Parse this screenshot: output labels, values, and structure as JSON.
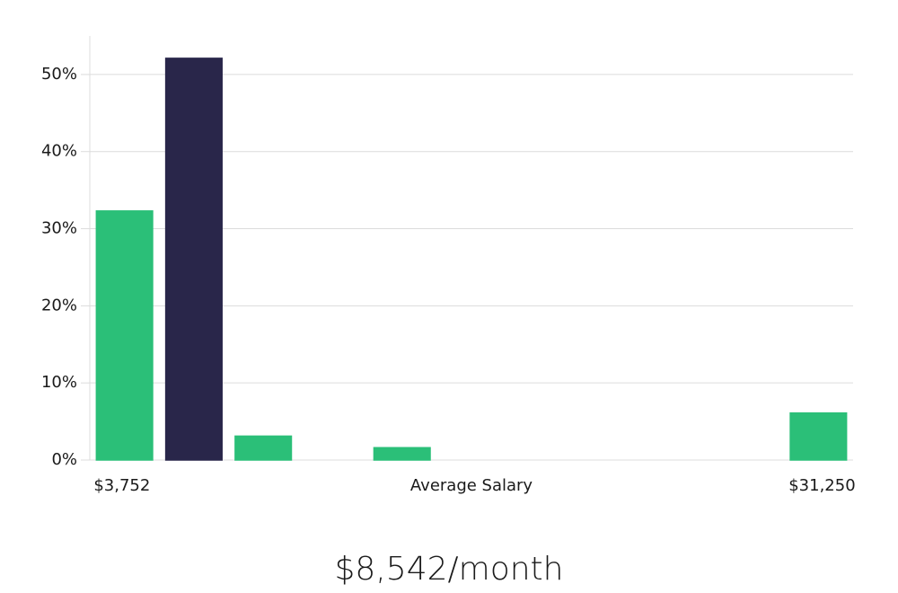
{
  "chart_data": {
    "type": "bar",
    "categories": [
      "$3,752",
      null,
      null,
      null,
      null,
      null,
      null,
      null,
      null,
      null,
      "$31,250"
    ],
    "values": [
      32.3,
      52.1,
      3.1,
      0,
      1.6,
      0,
      0,
      0,
      0,
      0,
      6.1
    ],
    "colors": [
      "#2bbf78",
      "#29264a",
      "#2bbf78",
      "#2bbf78",
      "#2bbf78",
      "#2bbf78",
      "#2bbf78",
      "#2bbf78",
      "#2bbf78",
      "#2bbf78",
      "#2bbf78"
    ],
    "x_label": "Average Salary",
    "caption": "$8,542/month",
    "ylim": [
      0,
      55
    ],
    "yticks": [
      {
        "value": 0,
        "label": "0%"
      },
      {
        "value": 10,
        "label": "10%"
      },
      {
        "value": 20,
        "label": "20%"
      },
      {
        "value": 30,
        "label": "30%"
      },
      {
        "value": 40,
        "label": "40%"
      },
      {
        "value": 50,
        "label": "50%"
      }
    ],
    "grid": true
  }
}
